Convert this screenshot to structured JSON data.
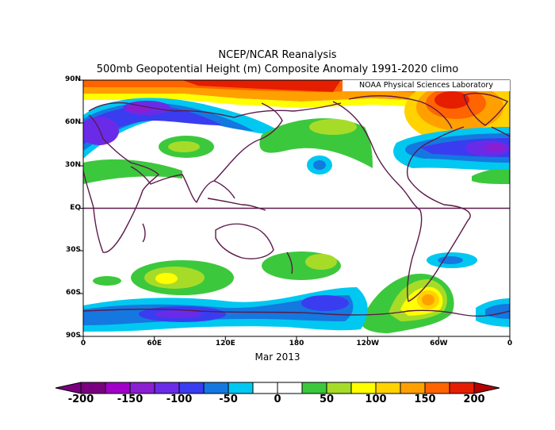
{
  "title_line1": "NCEP/NCAR Reanalysis",
  "title_line2": "500mb Geopotential Height (m) Composite Anomaly 1991-2020 climo",
  "credit": "NOAA Physical Sciences Laboratory",
  "date_label": "Mar 2013",
  "lat_labels": [
    "90N",
    "60N",
    "30N",
    "EQ",
    "30S",
    "60S",
    "90S"
  ],
  "lon_labels": [
    "0",
    "60E",
    "120E",
    "180",
    "120W",
    "60W",
    "0"
  ],
  "colorbar": {
    "ticks": [
      "-200",
      "-150",
      "-100",
      "-50",
      "0",
      "50",
      "100",
      "150",
      "200"
    ],
    "colors": [
      "#7a0080",
      "#a000c8",
      "#8c1ed2",
      "#6a2be8",
      "#3a3cf0",
      "#1478e0",
      "#00c8f0",
      "#ffffff",
      "#ffffff",
      "#3cc83c",
      "#a6dc28",
      "#ffff00",
      "#ffd200",
      "#ffa000",
      "#ff6400",
      "#e61e00"
    ]
  },
  "map_data": {
    "variable": "500mb geopotential height anomaly",
    "units": "m",
    "contour_interval": 25,
    "range": [
      -200,
      200
    ],
    "features": [
      {
        "region": "Arctic / North Pole",
        "sign": "positive",
        "peak": 200
      },
      {
        "region": "Greenland / NE Canada",
        "sign": "positive",
        "peak": 200
      },
      {
        "region": "North Atlantic",
        "sign": "negative",
        "peak": -175
      },
      {
        "region": "Europe",
        "sign": "negative",
        "peak": -150
      },
      {
        "region": "Northern Asia",
        "sign": "negative",
        "peak": -125
      },
      {
        "region": "Southern Ocean / Antarctic coast",
        "sign": "negative",
        "peak": -125
      },
      {
        "region": "South Atlantic / Antarctic Peninsula",
        "sign": "positive",
        "peak": 125
      },
      {
        "region": "South Indian Ocean",
        "sign": "positive",
        "peak": 75
      },
      {
        "region": "South Pacific",
        "sign": "positive",
        "peak": 75
      }
    ]
  }
}
